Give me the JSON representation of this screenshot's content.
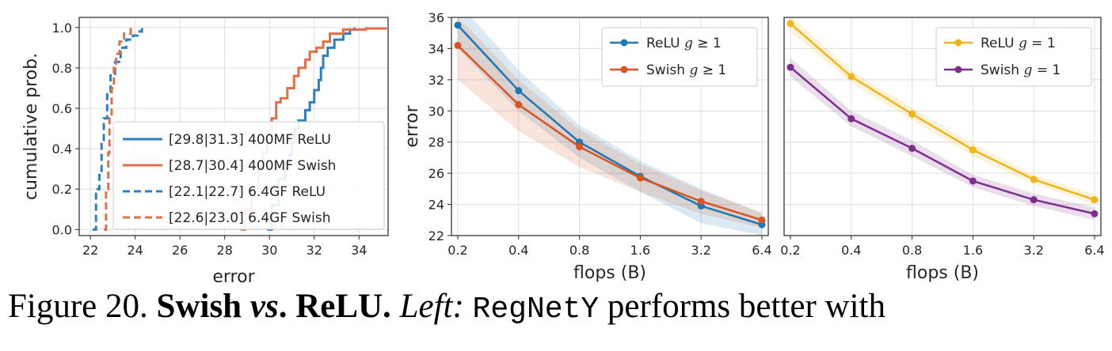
{
  "colors": {
    "relu400": "#2f7fc0",
    "swish400": "#e0704a",
    "blue": "#1f77b4",
    "red": "#d9541e",
    "yellow": "#f2b418",
    "purple": "#7e2f8e"
  },
  "chart_data": [
    {
      "type": "line",
      "title": "",
      "xlabel": "error",
      "ylabel": "cumulative prob.",
      "xlim": [
        21.5,
        35.3
      ],
      "ylim": [
        -0.03,
        1.05
      ],
      "xticks": [
        "22",
        "24",
        "26",
        "28",
        "30",
        "32",
        "34"
      ],
      "xtick_values": [
        22,
        24,
        26,
        28,
        30,
        32,
        34
      ],
      "yticks": [
        "0.0",
        "0.2",
        "0.4",
        "0.6",
        "0.8",
        "1.0"
      ],
      "ytick_values": [
        0.0,
        0.2,
        0.4,
        0.6,
        0.8,
        1.0
      ],
      "series": [
        {
          "name": "[29.8|31.3] 400MF ReLU",
          "color": "#2f7fc0",
          "dash": false,
          "x": [
            29.9,
            30.1,
            30.4,
            30.7,
            30.9,
            31.0,
            31.1,
            31.3,
            31.6,
            31.8,
            32.0,
            32.2,
            32.3,
            32.4,
            32.6,
            32.9,
            33.3,
            33.6,
            33.8
          ],
          "y": [
            0.0,
            0.12,
            0.25,
            0.33,
            0.37,
            0.43,
            0.5,
            0.54,
            0.59,
            0.63,
            0.69,
            0.74,
            0.8,
            0.86,
            0.9,
            0.94,
            0.97,
            0.99,
            1.0
          ]
        },
        {
          "name": "[28.7|30.4] 400MF Swish",
          "color": "#e0704a",
          "dash": false,
          "x": [
            28.7,
            28.9,
            29.2,
            29.5,
            29.7,
            29.9,
            30.1,
            30.3,
            30.5,
            30.8,
            31.1,
            31.3,
            31.6,
            31.8,
            32.1,
            32.4,
            32.7,
            33.3,
            34.3,
            35.2
          ],
          "y": [
            0.0,
            0.1,
            0.2,
            0.3,
            0.38,
            0.46,
            0.55,
            0.63,
            0.65,
            0.7,
            0.76,
            0.8,
            0.84,
            0.88,
            0.9,
            0.93,
            0.97,
            0.99,
            0.995,
            1.0
          ]
        },
        {
          "name": "[22.1|22.7] 6.4GF ReLU",
          "color": "#2f7fc0",
          "dash": true,
          "x": [
            22.1,
            22.25,
            22.4,
            22.5,
            22.6,
            22.75,
            22.9,
            23.1,
            23.35,
            23.6,
            23.9,
            24.1,
            24.3
          ],
          "y": [
            0.0,
            0.2,
            0.28,
            0.43,
            0.55,
            0.68,
            0.77,
            0.83,
            0.9,
            0.94,
            0.96,
            0.98,
            1.0
          ]
        },
        {
          "name": "[22.6|23.0] 6.4GF Swish",
          "color": "#e0704a",
          "dash": true,
          "x": [
            22.6,
            22.7,
            22.8,
            22.85,
            22.95,
            23.05,
            23.15,
            23.3,
            23.5,
            23.8
          ],
          "y": [
            0.0,
            0.2,
            0.38,
            0.55,
            0.7,
            0.8,
            0.87,
            0.93,
            0.97,
            1.0
          ]
        }
      ],
      "legend": "lower-right"
    },
    {
      "type": "line",
      "title": "",
      "xlabel": "flops (B)",
      "ylabel": "error",
      "categories": [
        "0.2",
        "0.4",
        "0.8",
        "1.6",
        "3.2",
        "6.4"
      ],
      "ylim": [
        22,
        36
      ],
      "yticks": [
        "22",
        "24",
        "26",
        "28",
        "30",
        "32",
        "34",
        "36"
      ],
      "ytick_values": [
        22,
        24,
        26,
        28,
        30,
        32,
        34,
        36
      ],
      "series": [
        {
          "name": "ReLU g≥1",
          "label_base": "ReLU ",
          "label_var": "g",
          "label_rel": " ≥ 1",
          "color": "#1f77b4",
          "values": [
            35.5,
            31.3,
            28.0,
            25.8,
            23.9,
            22.7
          ],
          "band_lower": [
            34.0,
            30.0,
            27.0,
            24.8,
            22.8,
            22.0
          ],
          "band_upper": [
            37.0,
            32.6,
            29.1,
            26.8,
            25.0,
            23.4
          ]
        },
        {
          "name": "Swish g≥1",
          "label_base": "Swish ",
          "label_var": "g",
          "label_rel": " ≥ 1",
          "color": "#d9541e",
          "values": [
            34.2,
            30.4,
            27.7,
            25.7,
            24.2,
            23.0
          ],
          "band_lower": [
            32.0,
            28.7,
            26.4,
            24.8,
            23.4,
            22.5
          ],
          "band_upper": [
            36.0,
            32.0,
            28.8,
            26.6,
            24.9,
            23.5
          ]
        }
      ],
      "legend": "top-right"
    },
    {
      "type": "line",
      "title": "",
      "xlabel": "flops (B)",
      "ylabel": "",
      "categories": [
        "0.2",
        "0.4",
        "0.8",
        "1.6",
        "3.2",
        "6.4"
      ],
      "ylim": [
        22,
        36
      ],
      "yticks": [],
      "series": [
        {
          "name": "ReLU g=1",
          "label_base": "ReLU ",
          "label_var": "g",
          "label_rel": " = 1",
          "color": "#f2b418",
          "values": [
            35.6,
            32.2,
            29.8,
            27.5,
            25.6,
            24.3
          ],
          "band_lower": [
            35.1,
            31.8,
            29.4,
            27.1,
            25.3,
            24.0
          ],
          "band_upper": [
            36.1,
            32.6,
            30.2,
            27.9,
            25.9,
            24.6
          ]
        },
        {
          "name": "Swish g=1",
          "label_base": "Swish ",
          "label_var": "g",
          "label_rel": " = 1",
          "color": "#7e2f8e",
          "values": [
            32.8,
            29.5,
            27.6,
            25.5,
            24.3,
            23.4
          ],
          "band_lower": [
            32.2,
            29.0,
            27.1,
            25.1,
            23.9,
            23.0
          ],
          "band_upper": [
            33.4,
            30.0,
            28.1,
            25.9,
            24.7,
            23.8
          ]
        }
      ],
      "legend": "top-right"
    }
  ],
  "caption": {
    "prefix": "Figure 20. ",
    "bold1": "Swish ",
    "vs": "vs",
    "bold2": ". ReLU.",
    "left_label": " Left:",
    "space": " ",
    "mono": "RegNetY",
    "rest": " performs better with"
  }
}
